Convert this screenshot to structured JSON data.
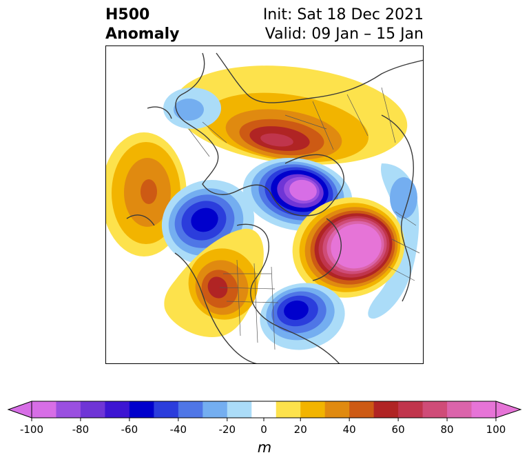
{
  "header": {
    "product_line1": "H500",
    "product_line2": "Anomaly",
    "init": "Init: Sat 18 Dec 2021",
    "valid": "Valid: 09 Jan – 15 Jan"
  },
  "map": {
    "projection": "north-polar-stereographic",
    "region": "Northern Hemisphere (North America, Atlantic, Arctic)",
    "features": [
      {
        "kind": "positive-anomaly",
        "location": "North Pacific (south of Aleutians)",
        "peak": 50
      },
      {
        "kind": "negative-anomaly",
        "location": "Alaska / Bering region",
        "peak": -60
      },
      {
        "kind": "positive-anomaly",
        "location": "Western United States / Canada",
        "peak": 60
      },
      {
        "kind": "negative-anomaly",
        "location": "Eastern United States / Great Lakes",
        "peak": -60
      },
      {
        "kind": "positive-anomaly",
        "location": "Greenland / North Atlantic",
        "peak": 100
      },
      {
        "kind": "negative-anomaly",
        "location": "Arctic / Barents-Kara region",
        "peak": -100
      },
      {
        "kind": "positive-anomaly",
        "location": "Siberia",
        "peak": 60
      },
      {
        "kind": "negative-anomaly",
        "location": "Western Europe",
        "peak": -30
      },
      {
        "kind": "negative-anomaly",
        "location": "East Asia / Japan",
        "peak": -30
      }
    ]
  },
  "colorbar": {
    "levels": [
      -100,
      -90,
      -80,
      -70,
      -60,
      -50,
      -40,
      -30,
      -20,
      -10,
      10,
      20,
      30,
      40,
      50,
      60,
      70,
      80,
      90,
      100
    ],
    "colors": [
      "#d76ee6",
      "#9a4fe0",
      "#6f35d6",
      "#3d15d2",
      "#0000cc",
      "#2b3ddc",
      "#4f76e6",
      "#74aef0",
      "#abdcf8",
      "#ffffff",
      "#fde24c",
      "#f2b400",
      "#e08a10",
      "#cd5a14",
      "#b02424",
      "#c0354c",
      "#cf4c78",
      "#db64ab",
      "#e674d7"
    ],
    "ticks": [
      "-100",
      "-80",
      "-60",
      "-40",
      "-20",
      "0",
      "20",
      "40",
      "60",
      "80",
      "100"
    ],
    "extend": "both",
    "units_label": "m"
  }
}
